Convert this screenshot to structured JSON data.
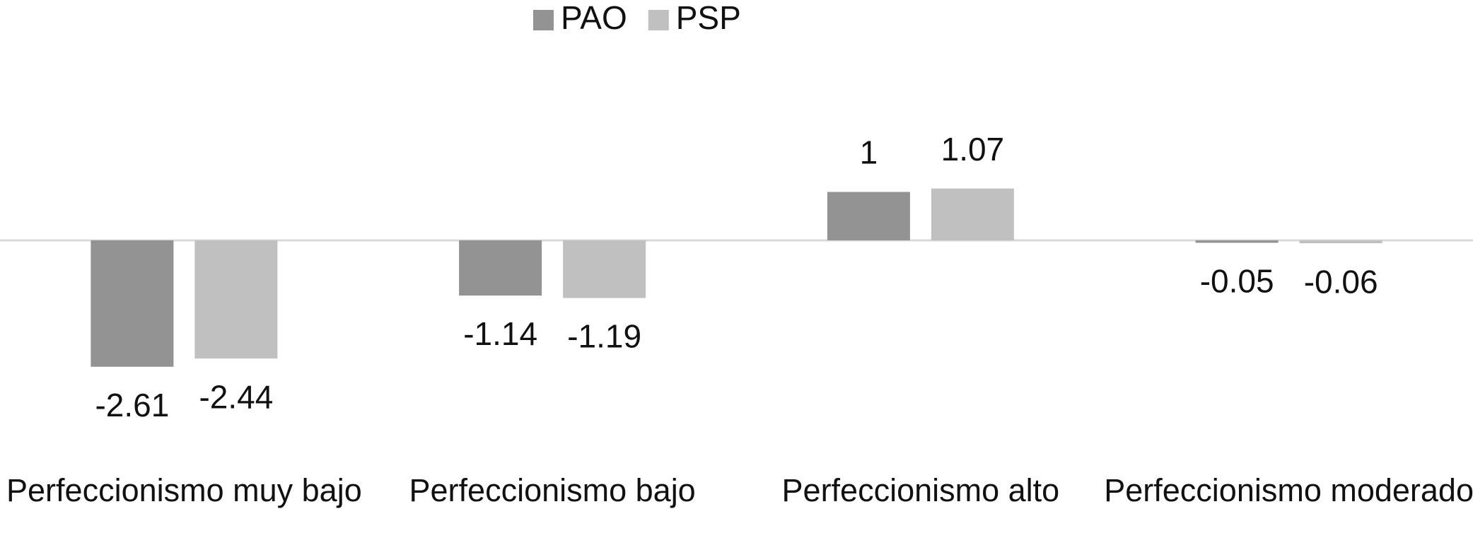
{
  "chart_data": {
    "type": "bar",
    "categories": [
      "Perfeccionismo muy bajo",
      "Perfeccionismo bajo",
      "Perfeccionismo alto",
      "Perfeccionismo moderado"
    ],
    "series": [
      {
        "name": "PAO",
        "color": "#939393",
        "values": [
          -2.61,
          -1.14,
          1,
          -0.05
        ]
      },
      {
        "name": "PSP",
        "color": "#c0c0c0",
        "values": [
          -2.44,
          -1.19,
          1.07,
          -0.06
        ]
      }
    ],
    "legend": "top"
  }
}
